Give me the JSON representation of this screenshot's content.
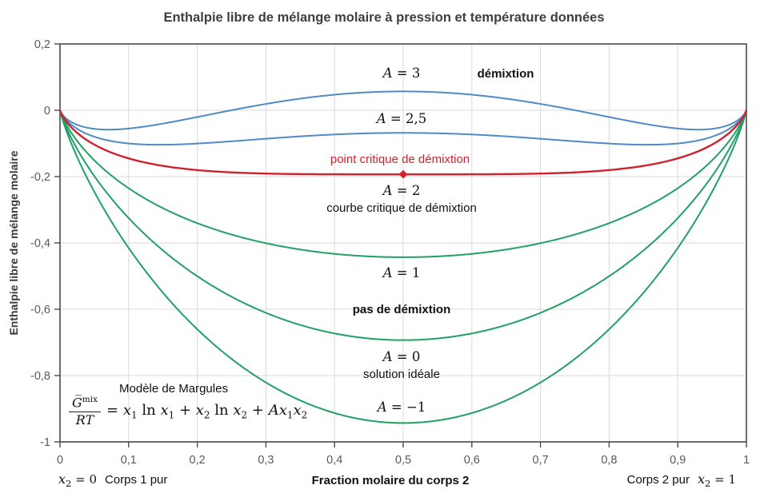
{
  "title": "Enthalpie libre de mélange molaire à pression et température données",
  "y_axis_title": "Enthalpie libre de mélange molaire",
  "x_axis_title": "Fraction molaire du corps 2",
  "colors": {
    "blue_curve": "#5089c4",
    "red_curve": "#d0212e",
    "green_curve": "#21a065",
    "critical_text": "#d0212e",
    "grid": "#d9d9d9",
    "axis": "#4a4a4a",
    "tick_label": "#595959",
    "title_text": "#3f3f3f"
  },
  "annotations": {
    "a3": {
      "var": "A",
      "rest": " = 3"
    },
    "demixtion": "démixtion",
    "a25": {
      "var": "A",
      "rest": " = 2,5"
    },
    "critical_point": "point critique de démixtion",
    "a2": {
      "var": "A",
      "rest": " = 2"
    },
    "critical_curve": "courbe critique de démixtion",
    "a1": {
      "var": "A",
      "rest": " = 1"
    },
    "no_demixtion": "pas de démixtion",
    "a0": {
      "var": "A",
      "rest": " = 0"
    },
    "ideal": "solution idéale",
    "am1": {
      "var": "A",
      "rest": " = −1"
    },
    "model_title": "Modèle de Margules"
  },
  "formula": {
    "num_base": "G̅",
    "num_sup": "mix",
    "den": "RT",
    "rhs": [
      {
        "t": "op",
        "v": "= "
      },
      {
        "t": "var",
        "v": "x"
      },
      {
        "t": "sub",
        "v": "1"
      },
      {
        "t": "op",
        "v": " ln "
      },
      {
        "t": "var",
        "v": "x"
      },
      {
        "t": "sub",
        "v": "1"
      },
      {
        "t": "op",
        "v": " + "
      },
      {
        "t": "var",
        "v": "x"
      },
      {
        "t": "sub",
        "v": "2"
      },
      {
        "t": "op",
        "v": " ln "
      },
      {
        "t": "var",
        "v": "x"
      },
      {
        "t": "sub",
        "v": "2"
      },
      {
        "t": "op",
        "v": " + "
      },
      {
        "t": "var",
        "v": "A"
      },
      {
        "t": "var",
        "v": "x"
      },
      {
        "t": "sub",
        "v": "1"
      },
      {
        "t": "var",
        "v": "x"
      },
      {
        "t": "sub",
        "v": "2"
      }
    ]
  },
  "footer": {
    "left_var": "x",
    "left_sub": "2",
    "left_eq": " = 0",
    "left_text": "Corps 1 pur",
    "right_text": "Corps 2 pur",
    "right_var": "x",
    "right_sub": "2",
    "right_eq": " = 1"
  },
  "chart_data": {
    "type": "line",
    "title": "Enthalpie libre de mélange molaire à pression et température données",
    "xlabel": "Fraction molaire du corps 2",
    "ylabel": "Enthalpie libre de mélange molaire",
    "xlim": [
      0,
      1
    ],
    "ylim": [
      -1,
      0.2
    ],
    "grid": true,
    "x_tick_values": [
      0,
      0.1,
      0.2,
      0.3,
      0.4,
      0.5,
      0.6,
      0.7,
      0.8,
      0.9,
      1
    ],
    "x_tick_labels": [
      "0",
      "0,1",
      "0,2",
      "0,3",
      "0,4",
      "0,5",
      "0,6",
      "0,7",
      "0,8",
      "0,9",
      "1"
    ],
    "y_tick_values": [
      0.2,
      0,
      -0.2,
      -0.4,
      -0.6,
      -0.8,
      -1
    ],
    "y_tick_labels": [
      "0,2",
      "0",
      "-0,2",
      "-0,4",
      "-0,6",
      "-0,8",
      "-1"
    ],
    "model_formula": "G_mix/RT = x1·ln(x1) + x2·ln(x2) + A·x1·x2 , x1 = 1 − x2, x = fraction molaire du corps 2",
    "series": [
      {
        "name": "A = 3",
        "A": 3,
        "color": "#5089c4",
        "y_at_x05": 0.057,
        "endpoints_y": [
          0,
          0
        ]
      },
      {
        "name": "A = 2,5",
        "A": 2.5,
        "color": "#5089c4",
        "y_at_x05": -0.068,
        "endpoints_y": [
          0,
          0
        ]
      },
      {
        "name": "A = 2",
        "A": 2,
        "color": "#d0212e",
        "y_at_x05": -0.193,
        "endpoints_y": [
          0,
          0
        ]
      },
      {
        "name": "A = 1",
        "A": 1,
        "color": "#21a065",
        "y_at_x05": -0.443,
        "endpoints_y": [
          0,
          0
        ]
      },
      {
        "name": "A = 0",
        "A": 0,
        "color": "#21a065",
        "y_at_x05": -0.693,
        "endpoints_y": [
          0,
          0
        ]
      },
      {
        "name": "A = −1",
        "A": -1,
        "color": "#21a065",
        "y_at_x05": -0.943,
        "endpoints_y": [
          0,
          0
        ]
      }
    ],
    "critical_point": {
      "x": 0.5,
      "y": -0.193,
      "color": "#e01b28",
      "marker": "diamond"
    }
  }
}
